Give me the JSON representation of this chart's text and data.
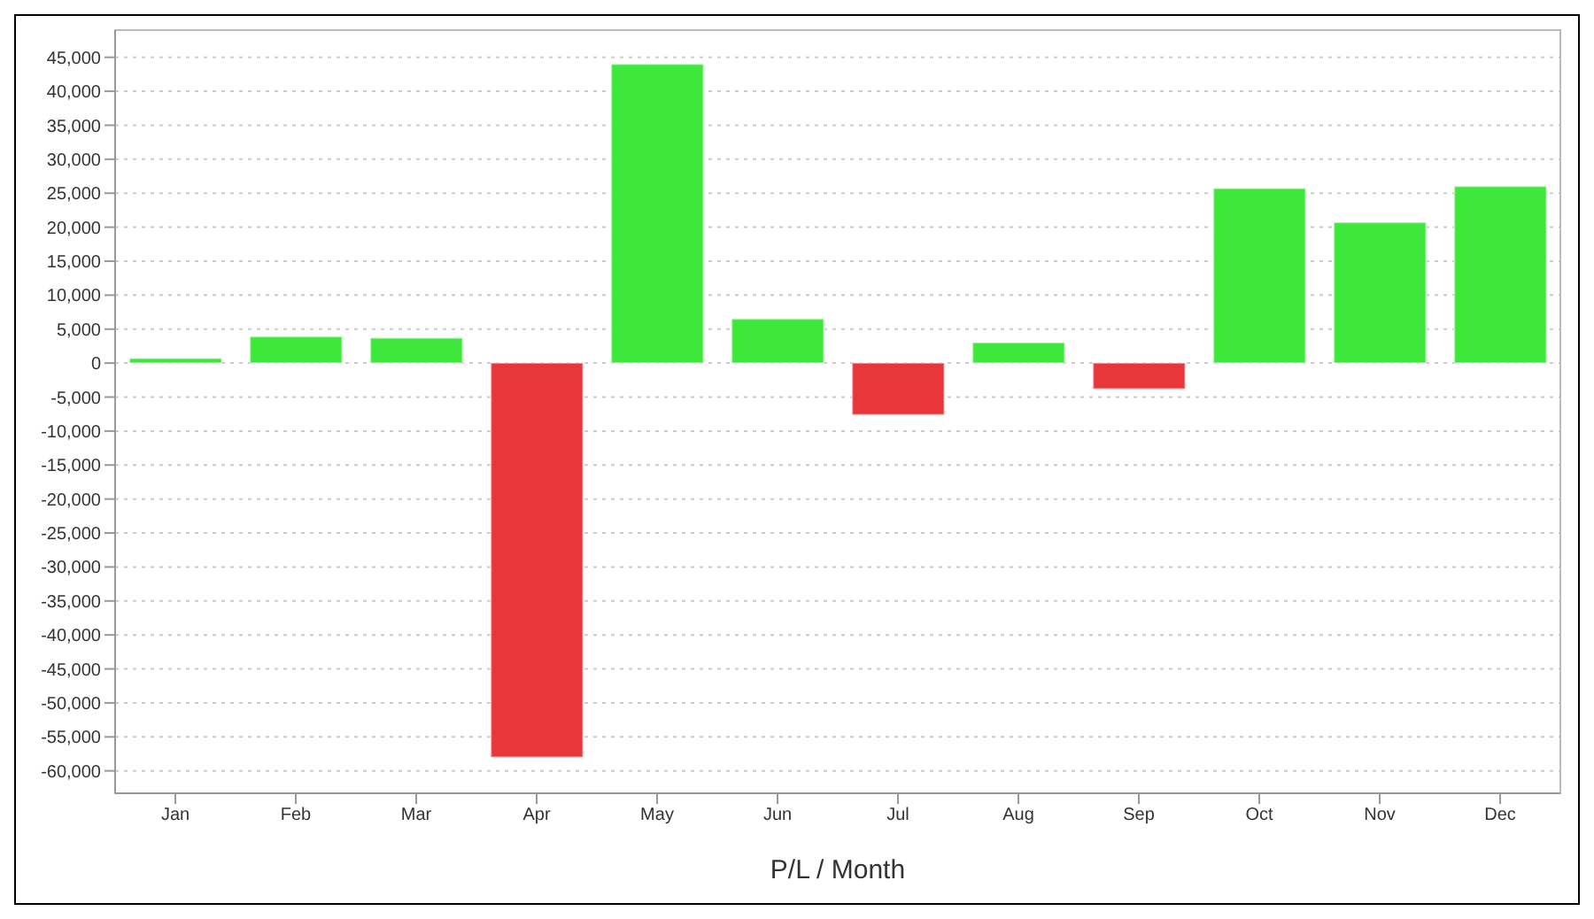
{
  "chart_data": {
    "type": "bar",
    "xlabel": "P/L / Month",
    "categories": [
      "Jan",
      "Feb",
      "Mar",
      "Apr",
      "May",
      "Jun",
      "Jul",
      "Aug",
      "Sep",
      "Oct",
      "Nov",
      "Dec"
    ],
    "values": [
      700,
      3900,
      3700,
      -58000,
      44000,
      6500,
      -7600,
      3000,
      -3800,
      25700,
      20700,
      26000
    ],
    "colors": [
      "#3de83a",
      "#3de83a",
      "#3de83a",
      "#e8373a",
      "#3de83a",
      "#3de83a",
      "#e8373a",
      "#3de83a",
      "#e8373a",
      "#3de83a",
      "#3de83a",
      "#3de83a"
    ],
    "ylim": [
      -63300,
      49000
    ],
    "yticks": [
      {
        "value": -60000,
        "label": "-60,000"
      },
      {
        "value": -55000,
        "label": "-55,000"
      },
      {
        "value": -50000,
        "label": "-50,000"
      },
      {
        "value": -45000,
        "label": "-45,000"
      },
      {
        "value": -40000,
        "label": "-40,000"
      },
      {
        "value": -35000,
        "label": "-35,000"
      },
      {
        "value": -30000,
        "label": "-30,000"
      },
      {
        "value": -25000,
        "label": "-25,000"
      },
      {
        "value": -20000,
        "label": "-20,000"
      },
      {
        "value": -15000,
        "label": "-15,000"
      },
      {
        "value": -10000,
        "label": "-10,000"
      },
      {
        "value": -5000,
        "label": "-5,000"
      },
      0,
      {
        "value": 5000,
        "label": "5,000"
      },
      {
        "value": 10000,
        "label": "10,000"
      },
      {
        "value": 15000,
        "label": "15,000"
      },
      {
        "value": 20000,
        "label": "20,000"
      },
      {
        "value": 25000,
        "label": "25,000"
      },
      {
        "value": 30000,
        "label": "30,000"
      },
      {
        "value": 35000,
        "label": "35,000"
      },
      {
        "value": 40000,
        "label": "40,000"
      },
      {
        "value": 45000,
        "label": "45,000"
      }
    ],
    "grid": "y"
  }
}
